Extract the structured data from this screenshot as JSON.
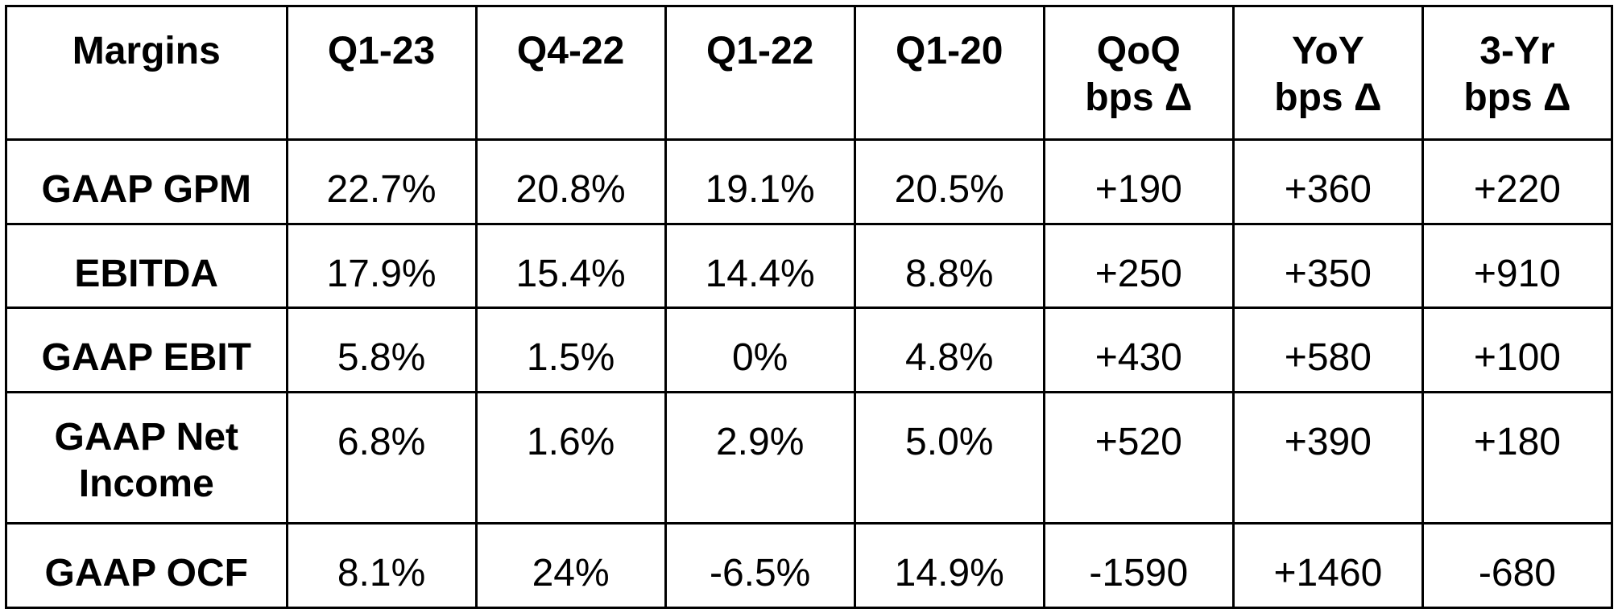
{
  "table": {
    "headers": [
      "Margins",
      "Q1-23",
      "Q4-22",
      "Q1-22",
      "Q1-20",
      "QoQ\nbps Δ",
      "YoY\nbps Δ",
      "3-Yr\nbps Δ"
    ],
    "rows": [
      {
        "label": "GAAP GPM",
        "cells": [
          "22.7%",
          "20.8%",
          "19.1%",
          "20.5%",
          "+190",
          "+360",
          "+220"
        ]
      },
      {
        "label": "EBITDA",
        "cells": [
          "17.9%",
          "15.4%",
          "14.4%",
          "8.8%",
          "+250",
          "+350",
          "+910"
        ]
      },
      {
        "label": "GAAP EBIT",
        "cells": [
          "5.8%",
          "1.5%",
          "0%",
          "4.8%",
          "+430",
          "+580",
          "+100"
        ]
      },
      {
        "label": "GAAP Net Income",
        "cells": [
          "6.8%",
          "1.6%",
          "2.9%",
          "5.0%",
          "+520",
          "+390",
          "+180"
        ]
      },
      {
        "label": "GAAP OCF",
        "cells": [
          "8.1%",
          "24%",
          "-6.5%",
          "14.9%",
          "-1590",
          "+1460",
          "-680"
        ]
      }
    ]
  }
}
